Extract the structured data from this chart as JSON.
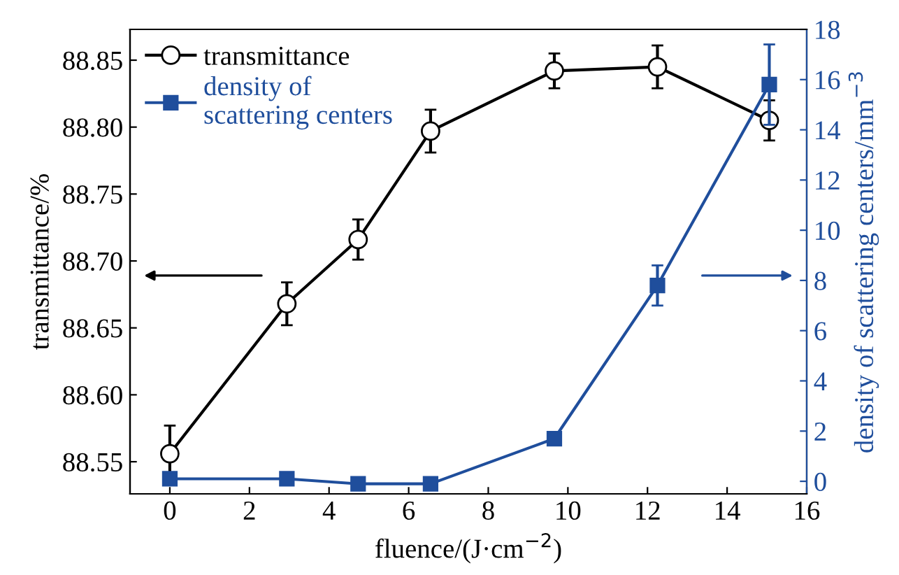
{
  "chart_data": {
    "type": "line",
    "xlabel": "fluence/(J·cm$^{−2}$)",
    "ylabel": "transmittance/%",
    "y2label": "density of scattering centers/mm$^{−3}$",
    "xlim": [
      -1,
      16
    ],
    "xticks": [
      0,
      2,
      4,
      6,
      8,
      10,
      12,
      14,
      16
    ],
    "ylim": [
      88.526,
      88.873
    ],
    "yticks": [
      {
        "value": 88.55,
        "label": "88.55"
      },
      {
        "value": 88.6,
        "label": "88.60"
      },
      {
        "value": 88.65,
        "label": "88.65"
      },
      {
        "value": 88.7,
        "label": "88.70"
      },
      {
        "value": 88.75,
        "label": "88.75"
      },
      {
        "value": 88.8,
        "label": "88.80"
      },
      {
        "value": 88.85,
        "label": "88.85"
      }
    ],
    "y2lim": [
      -0.5,
      18
    ],
    "y2ticks": [
      0,
      2,
      4,
      6,
      8,
      10,
      12,
      14,
      16,
      18
    ],
    "x": [
      0,
      2.94,
      4.73,
      6.55,
      9.66,
      12.25,
      15.06
    ],
    "series": [
      {
        "name": "transmittance",
        "color": "#000000",
        "marker": "circle",
        "values": [
          88.556,
          88.668,
          88.716,
          88.797,
          88.842,
          88.845,
          88.805
        ],
        "errors": [
          0.021,
          0.016,
          0.015,
          0.016,
          0.013,
          0.016,
          0.015
        ]
      },
      {
        "name": "density of\nscattering centers",
        "color": "#1f4e9c",
        "marker": "square",
        "axis": "y2",
        "values": [
          0.1,
          0.1,
          -0.1,
          -0.1,
          1.7,
          7.8,
          15.8
        ],
        "errors": [
          null,
          null,
          null,
          null,
          null,
          0.8,
          1.6
        ]
      }
    ],
    "legend": "top left",
    "grid": false,
    "line_style": "solid"
  }
}
